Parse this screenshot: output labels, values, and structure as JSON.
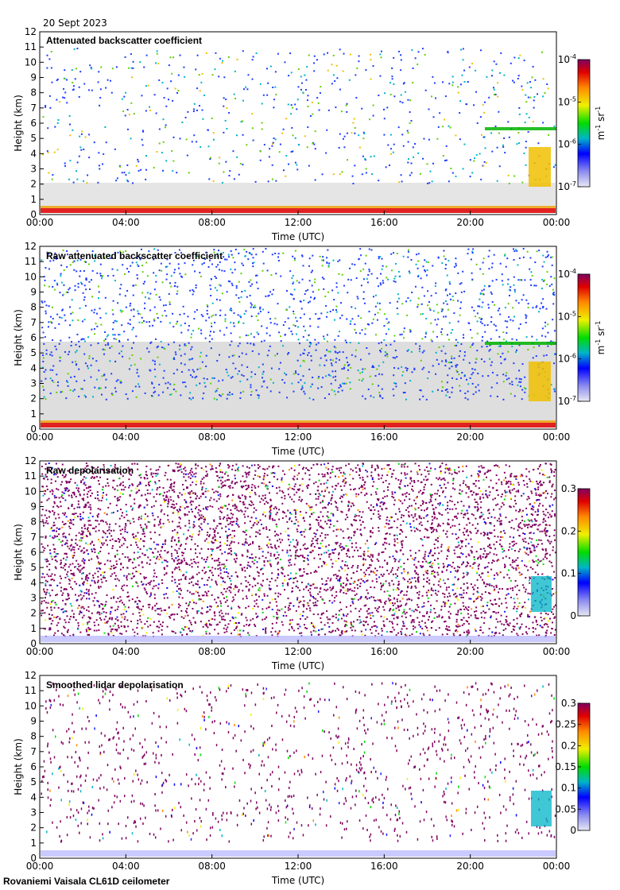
{
  "date": "20 Sept 2023",
  "footer": "Rovaniemi Vaisala CL61D ceilometer",
  "chart_data": [
    {
      "type": "heatmap",
      "title": "Attenuated backscatter coefficient",
      "xlabel": "Time (UTC)",
      "ylabel": "Height (km)",
      "x_ticks": [
        "00:00",
        "04:00",
        "08:00",
        "12:00",
        "16:00",
        "20:00",
        "00:00"
      ],
      "y_ticks": [
        "0",
        "1",
        "2",
        "3",
        "4",
        "5",
        "6",
        "7",
        "8",
        "9",
        "10",
        "11",
        "12"
      ],
      "ylim": [
        0,
        12
      ],
      "colorbar": {
        "scale": "log",
        "range": [
          1e-07,
          0.0001
        ],
        "unit_label": "m-1 sr-1",
        "ticks": [
          {
            "base": "10",
            "exp": "-4"
          },
          {
            "base": "10",
            "exp": "-5"
          },
          {
            "base": "10",
            "exp": "-6"
          },
          {
            "base": "10",
            "exp": "-7"
          }
        ]
      }
    },
    {
      "type": "heatmap",
      "title": "Raw attenuated backscatter coefficient",
      "xlabel": "Time (UTC)",
      "ylabel": "Height (km)",
      "x_ticks": [
        "00:00",
        "04:00",
        "08:00",
        "12:00",
        "16:00",
        "20:00",
        "00:00"
      ],
      "y_ticks": [
        "0",
        "1",
        "2",
        "3",
        "4",
        "5",
        "6",
        "7",
        "8",
        "9",
        "10",
        "11",
        "12"
      ],
      "ylim": [
        0,
        12
      ],
      "colorbar": {
        "scale": "log",
        "range": [
          1e-07,
          0.0001
        ],
        "unit_label": "m-1 sr-1",
        "ticks": [
          {
            "base": "10",
            "exp": "-4"
          },
          {
            "base": "10",
            "exp": "-5"
          },
          {
            "base": "10",
            "exp": "-6"
          },
          {
            "base": "10",
            "exp": "-7"
          }
        ]
      }
    },
    {
      "type": "heatmap",
      "title": "Raw depolarisation",
      "xlabel": "Time (UTC)",
      "ylabel": "Height (km)",
      "x_ticks": [
        "00:00",
        "04:00",
        "08:00",
        "12:00",
        "16:00",
        "20:00",
        "00:00"
      ],
      "y_ticks": [
        "0",
        "1",
        "2",
        "3",
        "4",
        "5",
        "6",
        "7",
        "8",
        "9",
        "10",
        "11",
        "12"
      ],
      "ylim": [
        0,
        12
      ],
      "colorbar": {
        "scale": "linear",
        "range": [
          0,
          0.3
        ],
        "ticks": [
          "0.3",
          "0.2",
          "0.1",
          "0"
        ]
      }
    },
    {
      "type": "heatmap",
      "title": "Smoothed lidar depolarisation",
      "xlabel": "Time (UTC)",
      "ylabel": "Height (km)",
      "x_ticks": [
        "00:00",
        "04:00",
        "08:00",
        "12:00",
        "16:00",
        "20:00",
        "00:00"
      ],
      "y_ticks": [
        "0",
        "1",
        "2",
        "3",
        "4",
        "5",
        "6",
        "7",
        "8",
        "9",
        "10",
        "11",
        "12"
      ],
      "ylim": [
        0,
        12
      ],
      "colorbar": {
        "scale": "linear",
        "range": [
          0,
          0.3
        ],
        "ticks": [
          "0.3",
          "0.25",
          "0.2",
          "0.15",
          "0.1",
          "0.05",
          "0"
        ]
      }
    }
  ]
}
